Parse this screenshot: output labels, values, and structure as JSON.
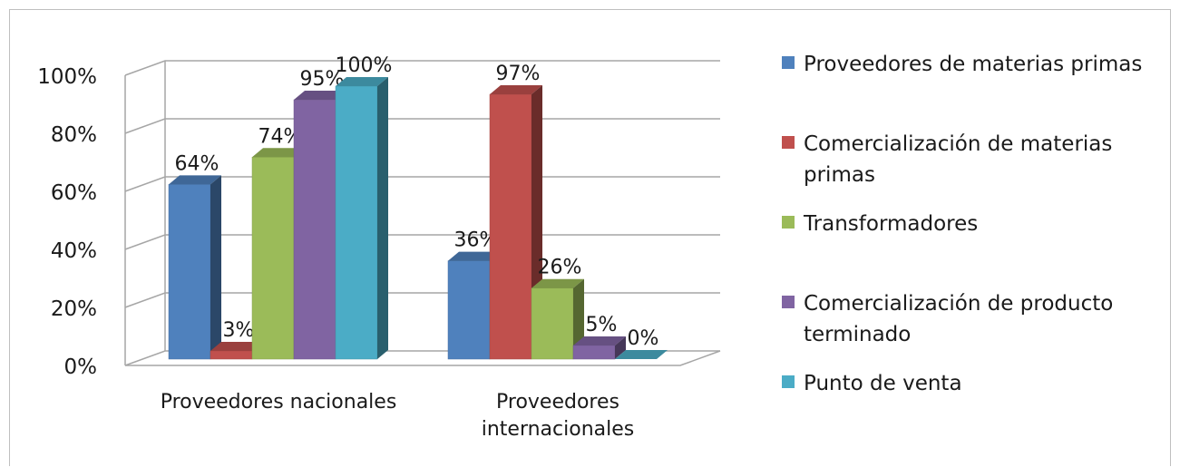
{
  "chart_data": {
    "type": "bar",
    "categories": [
      "Proveedores nacionales",
      "Proveedores internacionales"
    ],
    "category_lines": [
      [
        "Proveedores nacionales"
      ],
      [
        "Proveedores",
        "internacionales"
      ]
    ],
    "series": [
      {
        "name": "Proveedores de materias primas",
        "name_lines": [
          "Proveedores de materias primas"
        ],
        "values": [
          64,
          36
        ],
        "labels": [
          "64%",
          "36%"
        ],
        "color": "#4f81bd"
      },
      {
        "name": "Comercialización de materias primas",
        "name_lines": [
          "Comercialización de materias",
          "primas"
        ],
        "values": [
          3,
          97
        ],
        "labels": [
          "3%",
          "97%"
        ],
        "color": "#c0504d"
      },
      {
        "name": "Transformadores",
        "name_lines": [
          "Transformadores"
        ],
        "values": [
          74,
          26
        ],
        "labels": [
          "74%",
          "26%"
        ],
        "color": "#9bbb59"
      },
      {
        "name": "Comercialización de producto terminado",
        "name_lines": [
          "Comercialización de producto",
          "terminado"
        ],
        "values": [
          95,
          5
        ],
        "labels": [
          "95%",
          "5%"
        ],
        "color": "#8064a2"
      },
      {
        "name": "Punto de venta",
        "name_lines": [
          "Punto de venta"
        ],
        "values": [
          100,
          0
        ],
        "labels": [
          "100%",
          "0%"
        ],
        "color": "#4bacc6"
      }
    ],
    "yticks": [
      "0%",
      "20%",
      "40%",
      "60%",
      "80%",
      "100%"
    ],
    "ylim": [
      0,
      100
    ],
    "grid": true,
    "three_d": true,
    "legend_position": "right"
  }
}
